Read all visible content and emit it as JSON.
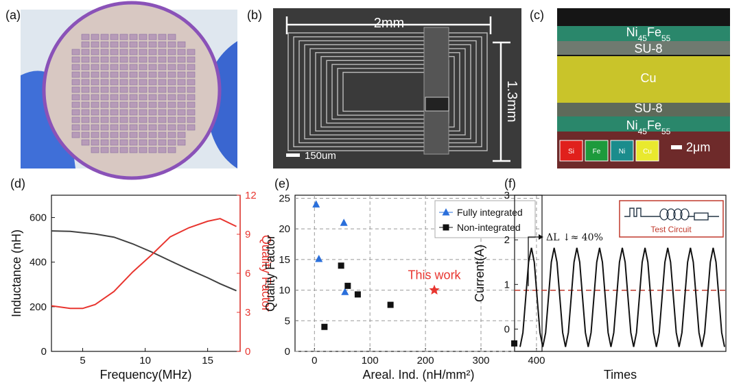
{
  "panels": {
    "a": {
      "label": "(a)"
    },
    "b": {
      "label": "(b)",
      "width": "2mm",
      "height": "1.3mm",
      "scale": "150um"
    },
    "c": {
      "label": "(c)",
      "ni_fe": [
        "Ni",
        "45",
        "Fe",
        "55"
      ],
      "su8": "SU-8",
      "cu": "Cu",
      "elements": [
        "Si",
        "Fe",
        "Ni",
        "Cu"
      ],
      "element_colors": [
        "#e0201c",
        "#1d9a3c",
        "#1b8c8c",
        "#e9e92e"
      ],
      "scale": "2μm"
    }
  },
  "chart_data": [
    {
      "type": "line",
      "label": "(d)",
      "xlabel": "Frequency(MHz)",
      "ylabel": "Inductance (nH)",
      "y2label": "Quality Factor",
      "x": [
        2.5,
        4,
        5,
        6,
        7.5,
        9,
        10.5,
        12,
        13.5,
        15,
        16,
        17.3
      ],
      "series": [
        {
          "color": "#404040",
          "values": [
            540,
            538,
            532,
            526,
            512,
            482,
            446,
            406,
            367,
            330,
            303,
            272
          ]
        },
        {
          "color": "#e8352f",
          "axis": "y2",
          "values": [
            3.5,
            3.3,
            3.3,
            3.6,
            4.6,
            6.1,
            7.4,
            8.8,
            9.5,
            10,
            10.2,
            9.6
          ]
        }
      ],
      "xlim": [
        2.5,
        17.6
      ],
      "xticks": [
        5,
        10,
        15
      ],
      "ylim": [
        0,
        700
      ],
      "yticks": [
        0,
        200,
        400,
        600
      ],
      "y2lim": [
        0,
        12
      ],
      "y2ticks": [
        0,
        3,
        6,
        9,
        12
      ]
    },
    {
      "type": "scatter",
      "label": "(e)",
      "xlabel": "Areal. Ind. (nH/mm²)",
      "ylabel": "Quality Factor",
      "series": [
        {
          "name": "Fully integrated",
          "color": "#2a6fdb",
          "marker": "triangle",
          "x": [
            3,
            53,
            8,
            55
          ],
          "values": [
            24,
            21,
            15.1,
            9.7
          ]
        },
        {
          "name": "Non-integrated",
          "color": "#111111",
          "marker": "square",
          "x": [
            48,
            60,
            78,
            137,
            18,
            360
          ],
          "values": [
            14,
            10.7,
            9.3,
            7.6,
            4,
            1.3
          ]
        }
      ],
      "highlight": {
        "text": "This work",
        "x": 216,
        "value": 10,
        "color": "#e8352f",
        "marker": "star"
      },
      "xlim": [
        -35,
        410
      ],
      "xticks": [
        0,
        100,
        200,
        300,
        400
      ],
      "ylim": [
        0,
        25.5
      ],
      "yticks": [
        0,
        5,
        10,
        15,
        20,
        25
      ],
      "grid": true,
      "legend": "upper right"
    },
    {
      "type": "line",
      "label": "(f)",
      "xlabel": "Times",
      "ylabel": "Current(A)",
      "color": "#111111",
      "values": [
        -0.4,
        -0.08,
        0.71,
        1.5,
        1.82,
        1.5,
        0.71,
        -0.08,
        -0.4,
        -0.08,
        0.71,
        1.5,
        1.82,
        1.5,
        0.71,
        -0.08,
        -0.4,
        -0.08,
        0.71,
        1.5,
        1.82,
        1.5,
        0.71,
        -0.08,
        -0.4,
        -0.08,
        0.71,
        1.5,
        1.82,
        1.5,
        0.71,
        -0.08,
        -0.4,
        -0.08,
        0.71,
        1.5,
        1.82,
        1.5,
        0.71,
        -0.08,
        -0.4,
        -0.08,
        0.71,
        1.5,
        1.82,
        1.5,
        0.71,
        -0.08,
        -0.4,
        -0.08,
        0.71,
        1.5,
        1.82,
        1.5,
        0.71,
        -0.08,
        -0.4,
        -0.08,
        0.71,
        1.5,
        1.82,
        1.5,
        0.71,
        -0.08,
        -0.4,
        -0.08,
        0.71,
        1.5,
        1.82,
        1.5,
        0.71,
        -0.08,
        -0.4
      ],
      "ylim": [
        -0.5,
        3
      ],
      "yticks": [
        0,
        1,
        2,
        3
      ],
      "reference_line": {
        "value": 0.87,
        "color": "#c0392b"
      },
      "annotation": "ΔL ↓≈ 40%",
      "inset": "Test Circuit"
    }
  ]
}
